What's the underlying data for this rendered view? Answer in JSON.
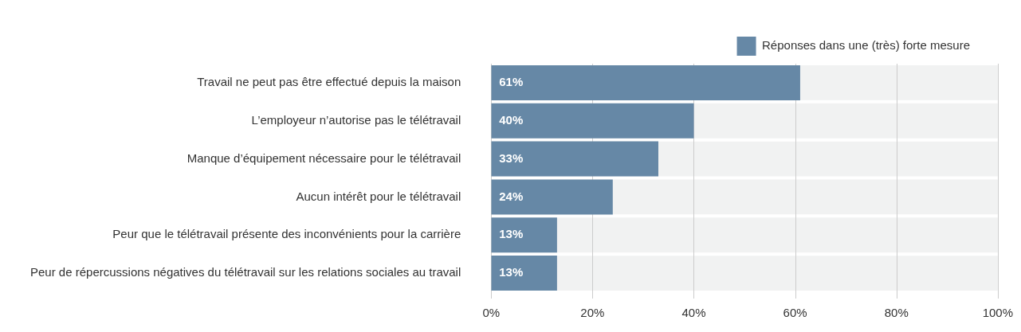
{
  "chart_data": {
    "type": "bar",
    "orientation": "horizontal",
    "categories": [
      "Travail ne peut pas être effectué depuis la maison",
      "L’employeur n’autorise pas le télétravail",
      "Manque d’équipement nécessaire pour le télétravail",
      "Aucun intérêt pour le télétravail",
      "Peur que le télétravail présente des inconvénients pour la carrière",
      "Peur de répercussions négatives du télétravail sur les relations sociales au travail"
    ],
    "series": [
      {
        "name": "Réponses dans une (très) forte mesure",
        "color": "#6688a6",
        "values": [
          61,
          40,
          33,
          24,
          13,
          13
        ],
        "value_labels": [
          "61%",
          "40%",
          "33%",
          "24%",
          "13%",
          "13%"
        ]
      }
    ],
    "xlim": [
      0,
      100
    ],
    "xticks": [
      {
        "value": 0,
        "label": "0%"
      },
      {
        "value": 20,
        "label": "20%"
      },
      {
        "value": 40,
        "label": "40%"
      },
      {
        "value": 60,
        "label": "60%"
      },
      {
        "value": 80,
        "label": "80%"
      },
      {
        "value": 100,
        "label": "100%"
      }
    ],
    "grid": "x",
    "legend": "top right"
  }
}
